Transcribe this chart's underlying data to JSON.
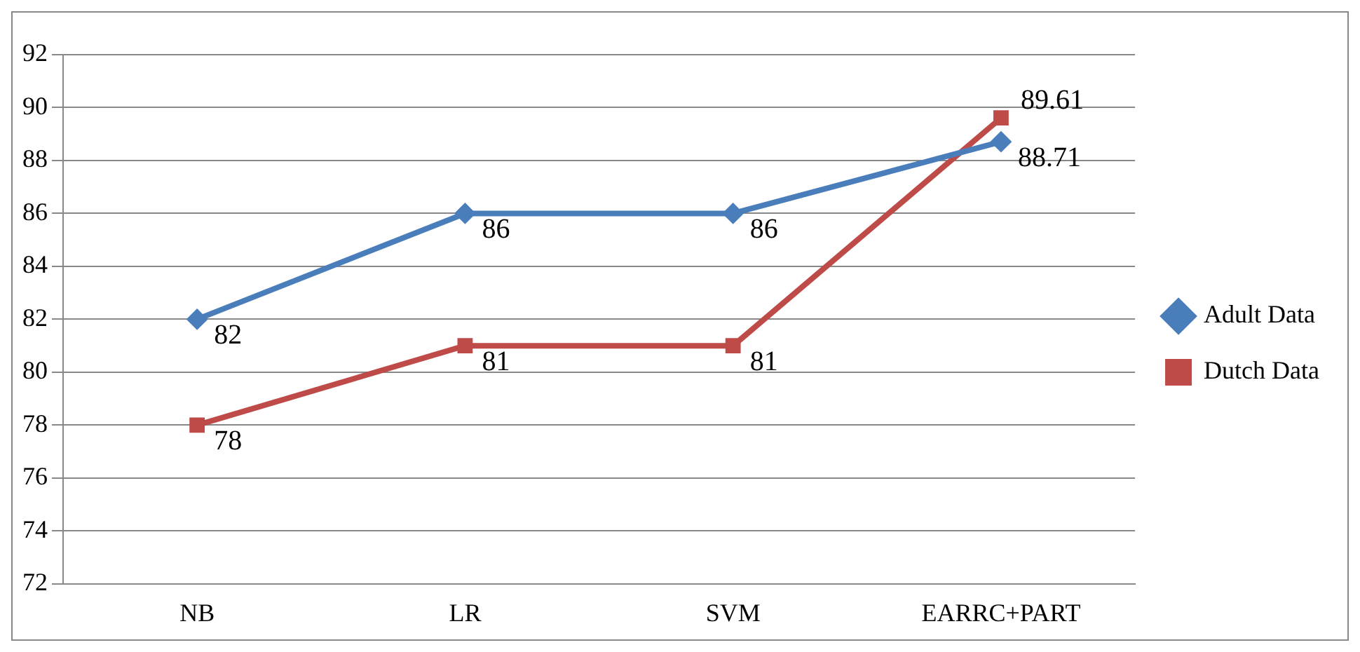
{
  "chart_data": {
    "type": "line",
    "categories": [
      "NB",
      "LR",
      "SVM",
      "EARRC+PART"
    ],
    "series": [
      {
        "name": "Adult Data",
        "color": "#4a7ebb",
        "marker": "diamond",
        "values": [
          82,
          86,
          86,
          88.71
        ]
      },
      {
        "name": "Dutch Data",
        "color": "#be4b48",
        "marker": "square",
        "values": [
          78,
          81,
          81,
          89.61
        ]
      }
    ],
    "ylim": [
      72,
      92
    ],
    "yticks": [
      72,
      74,
      76,
      78,
      80,
      82,
      84,
      86,
      88,
      90,
      92
    ],
    "grid": "y",
    "legend": "right",
    "data_labels": true
  }
}
